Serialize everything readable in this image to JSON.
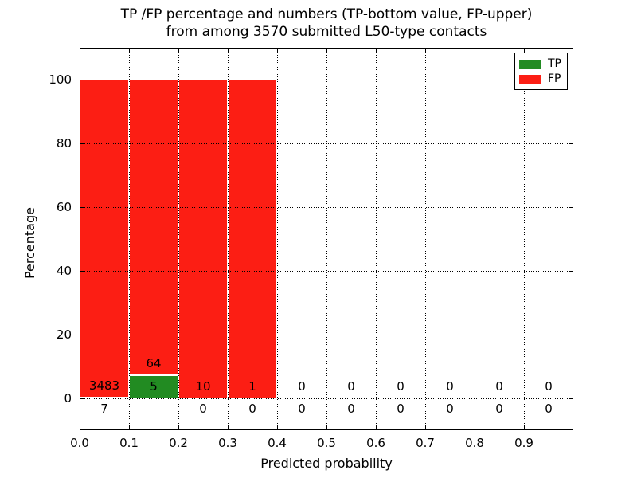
{
  "title": {
    "line1": "TP /FP percentage and numbers (TP-bottom value, FP-upper)",
    "line2": "from among 3570 submitted L50-type contacts"
  },
  "legend": [
    {
      "label": "TP",
      "color": "#228b22"
    },
    {
      "label": "FP",
      "color": "#fc1e14"
    }
  ],
  "colors": {
    "tp": "#228b22",
    "fp": "#fc1e14",
    "bar_edge": "#ffffff",
    "grid": "#000000",
    "text": "#000000",
    "background": "#ffffff"
  },
  "chart_data": {
    "type": "bar",
    "stacked": true,
    "title": "TP /FP percentage and numbers (TP-bottom value, FP-upper) from among 3570 submitted L50-type contacts",
    "x_label": "Predicted probability",
    "y_label": "Percentage",
    "xlim": [
      0.0,
      1.0
    ],
    "ylim": [
      -10,
      110
    ],
    "grid": "dotted",
    "legend_position": "upper right",
    "total_contacts": 3570,
    "bin_width": 0.1,
    "bins": [
      {
        "x0": 0.0,
        "x1": 0.1,
        "tp_count": 7,
        "fp_count": 3483,
        "tp_pct": 0.2,
        "fp_pct": 99.8
      },
      {
        "x0": 0.1,
        "x1": 0.2,
        "tp_count": 5,
        "fp_count": 64,
        "tp_pct": 7.2,
        "fp_pct": 92.8
      },
      {
        "x0": 0.2,
        "x1": 0.3,
        "tp_count": 0,
        "fp_count": 10,
        "tp_pct": 0,
        "fp_pct": 100
      },
      {
        "x0": 0.3,
        "x1": 0.4,
        "tp_count": 0,
        "fp_count": 1,
        "tp_pct": 0,
        "fp_pct": 100
      },
      {
        "x0": 0.4,
        "x1": 0.5,
        "tp_count": 0,
        "fp_count": 0,
        "tp_pct": 0,
        "fp_pct": 0
      },
      {
        "x0": 0.5,
        "x1": 0.6,
        "tp_count": 0,
        "fp_count": 0,
        "tp_pct": 0,
        "fp_pct": 0
      },
      {
        "x0": 0.6,
        "x1": 0.7,
        "tp_count": 0,
        "fp_count": 0,
        "tp_pct": 0,
        "fp_pct": 0
      },
      {
        "x0": 0.7,
        "x1": 0.8,
        "tp_count": 0,
        "fp_count": 0,
        "tp_pct": 0,
        "fp_pct": 0
      },
      {
        "x0": 0.8,
        "x1": 0.9,
        "tp_count": 0,
        "fp_count": 0,
        "tp_pct": 0,
        "fp_pct": 0
      },
      {
        "x0": 0.9,
        "x1": 1.0,
        "tp_count": 0,
        "fp_count": 0,
        "tp_pct": 0,
        "fp_pct": 0
      }
    ],
    "x_ticks": [
      {
        "v": 0.0,
        "label": "0.0"
      },
      {
        "v": 0.1,
        "label": "0.1"
      },
      {
        "v": 0.2,
        "label": "0.2"
      },
      {
        "v": 0.3,
        "label": "0.3"
      },
      {
        "v": 0.4,
        "label": "0.4"
      },
      {
        "v": 0.5,
        "label": "0.5"
      },
      {
        "v": 0.6,
        "label": "0.6"
      },
      {
        "v": 0.7,
        "label": "0.7"
      },
      {
        "v": 0.8,
        "label": "0.8"
      },
      {
        "v": 0.9,
        "label": "0.9"
      }
    ],
    "y_ticks": [
      {
        "v": 0,
        "label": "0"
      },
      {
        "v": 20,
        "label": "20"
      },
      {
        "v": 40,
        "label": "40"
      },
      {
        "v": 60,
        "label": "60"
      },
      {
        "v": 80,
        "label": "80"
      },
      {
        "v": 100,
        "label": "100"
      }
    ]
  }
}
